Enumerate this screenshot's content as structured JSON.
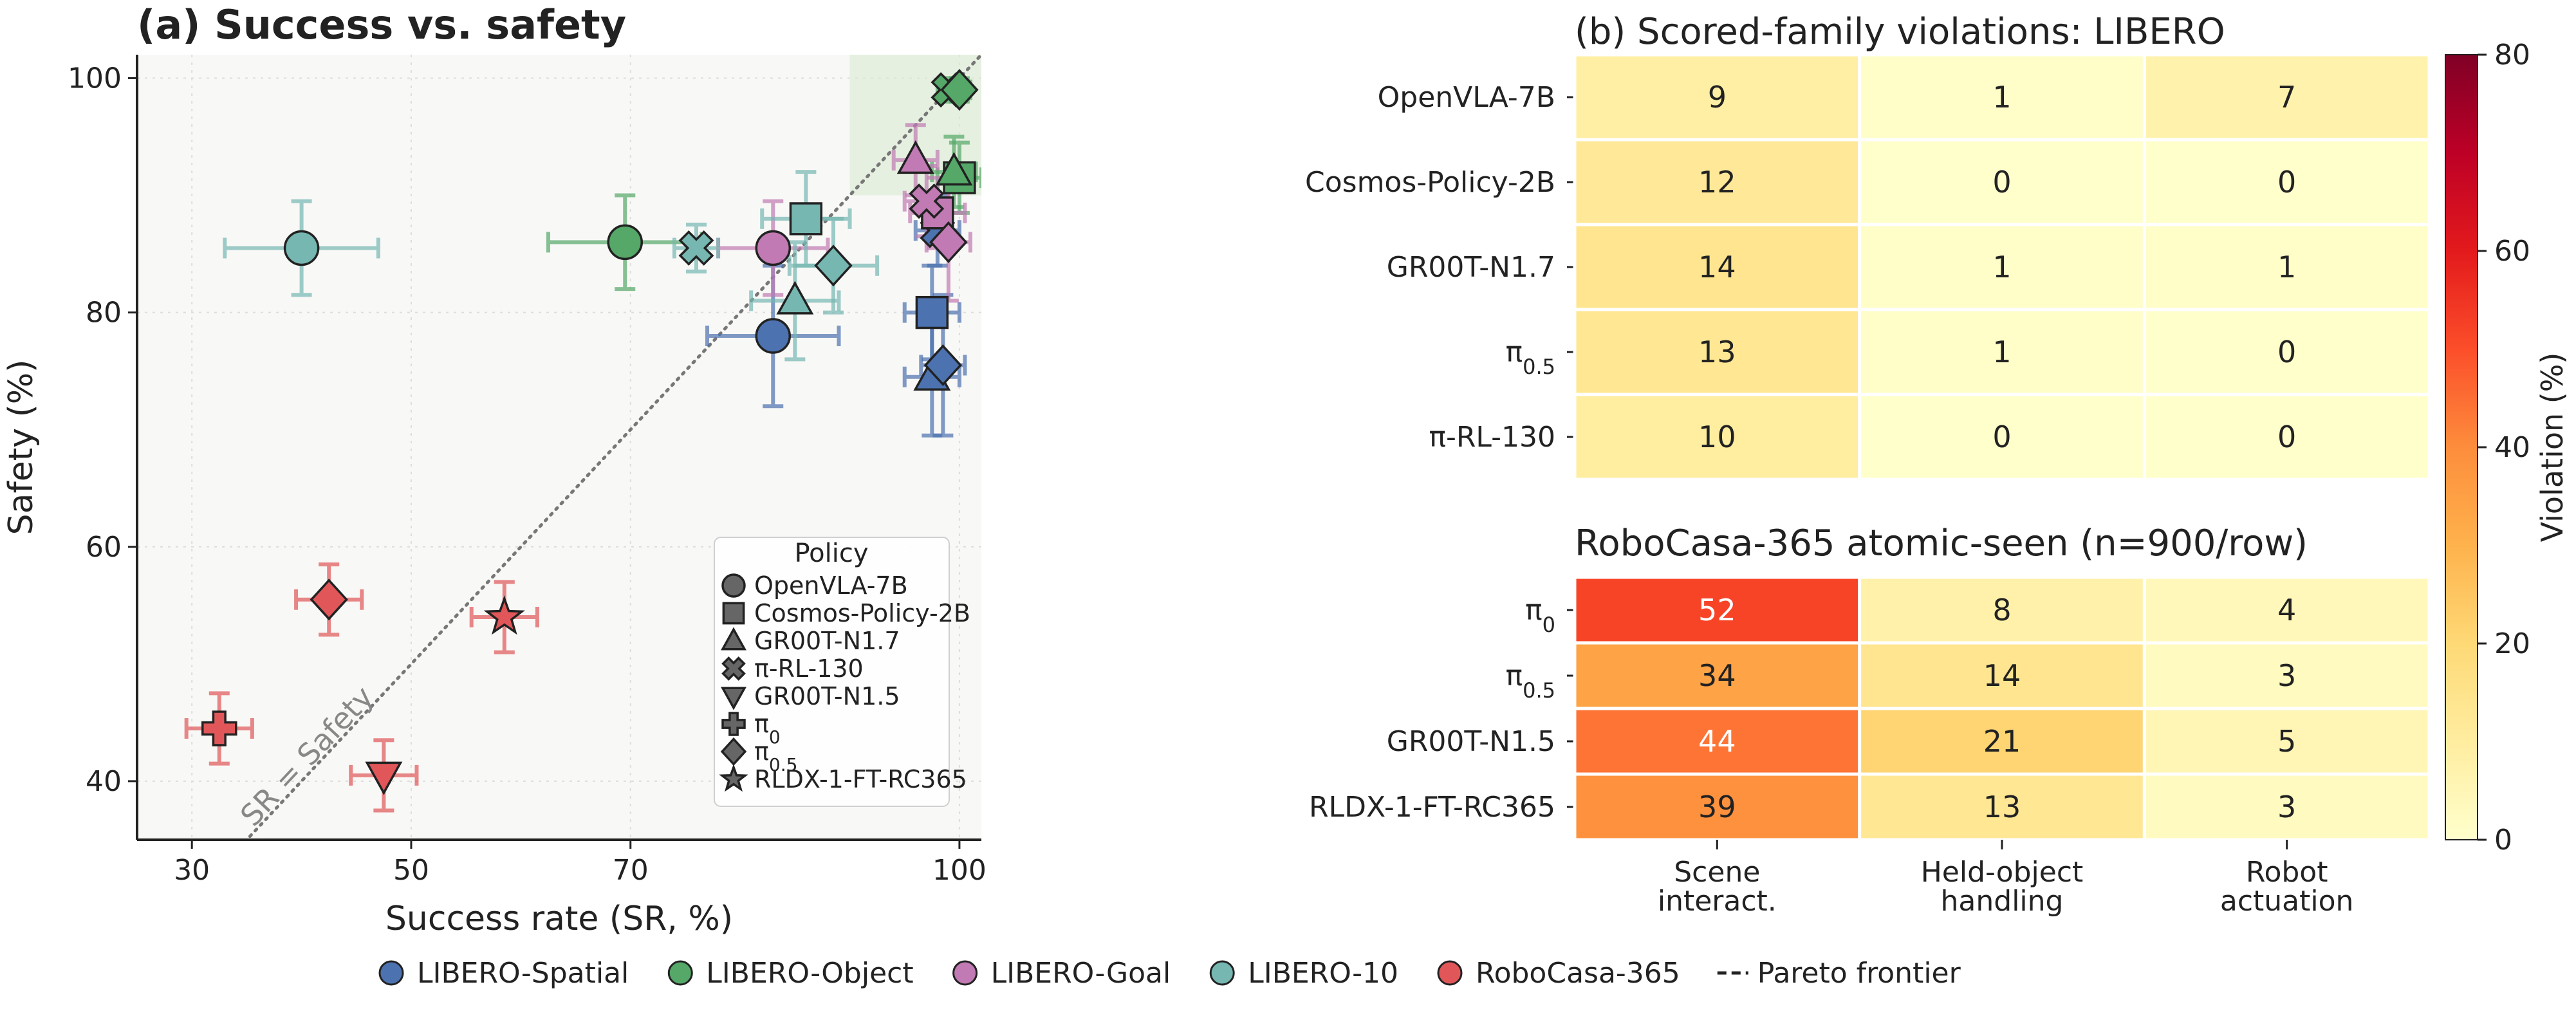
{
  "panel_a": {
    "title": "(a) Success vs. safety",
    "diag_label": "SR = Safety"
  },
  "panel_b": {
    "title_top": "(b) Scored-family violations: LIBERO",
    "title_bottom": "RoboCasa-365 atomic-seen (n=900/row)"
  },
  "chart_data": [
    {
      "type": "scatter",
      "title": "(a) Success vs. safety",
      "xlabel": "Success rate (SR, %)",
      "ylabel": "Safety (%)",
      "xlim": [
        25,
        102
      ],
      "ylim": [
        35,
        102
      ],
      "xticks": [
        30,
        50,
        70,
        100
      ],
      "yticks": [
        40,
        60,
        80,
        100
      ],
      "grid": true,
      "shaded_region": {
        "x": [
          90,
          102
        ],
        "y": [
          90,
          102
        ]
      },
      "diagonal": {
        "label": "SR = Safety",
        "style": "dotted"
      },
      "legend": {
        "title": "Policy",
        "placement": "lower-right",
        "entries": [
          {
            "label": "OpenVLA-7B",
            "marker": "circle"
          },
          {
            "label": "Cosmos-Policy-2B",
            "marker": "square"
          },
          {
            "label": "GR00T-N1.7",
            "marker": "triangle-up"
          },
          {
            "label": "π-RL-130",
            "marker": "x"
          },
          {
            "label": "GR00T-N1.5",
            "marker": "triangle-down"
          },
          {
            "label": "π0",
            "marker": "plus"
          },
          {
            "label": "π0.5",
            "marker": "diamond"
          },
          {
            "label": "RLDX-1-FT-RC365",
            "marker": "star"
          }
        ]
      },
      "series": [
        {
          "name": "LIBERO-Spatial",
          "color": "#4c72b0",
          "points": [
            {
              "policy": "OpenVLA-7B",
              "marker": "circle",
              "x": 83,
              "y": 78,
              "xerr": 6,
              "yerr": 6
            },
            {
              "policy": "Cosmos-Policy-2B",
              "marker": "square",
              "x": 97.5,
              "y": 80,
              "xerr": 2.5,
              "yerr": 4
            },
            {
              "policy": "GR00T-N1.7",
              "marker": "triangle-up",
              "x": 97.5,
              "y": 74.5,
              "xerr": 2.5,
              "yerr": 5
            },
            {
              "policy": "π-RL-130",
              "marker": "x",
              "x": 98,
              "y": 87,
              "xerr": 2,
              "yerr": 3
            },
            {
              "policy": "π0.5",
              "marker": "diamond",
              "x": 98.5,
              "y": 75.5,
              "xerr": 2,
              "yerr": 6
            }
          ]
        },
        {
          "name": "LIBERO-Object",
          "color": "#55a868",
          "points": [
            {
              "policy": "OpenVLA-7B",
              "marker": "circle",
              "x": 69.5,
              "y": 86,
              "xerr": 7,
              "yerr": 4
            },
            {
              "policy": "Cosmos-Policy-2B",
              "marker": "square",
              "x": 100,
              "y": 91.5,
              "xerr": 2,
              "yerr": 3
            },
            {
              "policy": "GR00T-N1.7",
              "marker": "triangle-up",
              "x": 99.5,
              "y": 92,
              "xerr": 2,
              "yerr": 3
            },
            {
              "policy": "π-RL-130",
              "marker": "x",
              "x": 99,
              "y": 99,
              "xerr": 1,
              "yerr": 1
            },
            {
              "policy": "π0.5",
              "marker": "diamond",
              "x": 100,
              "y": 99,
              "xerr": 1,
              "yerr": 1
            }
          ]
        },
        {
          "name": "LIBERO-Goal",
          "color": "#c17ab3",
          "points": [
            {
              "policy": "OpenVLA-7B",
              "marker": "circle",
              "x": 83,
              "y": 85.5,
              "xerr": 5,
              "yerr": 4
            },
            {
              "policy": "Cosmos-Policy-2B",
              "marker": "square",
              "x": 98,
              "y": 88.5,
              "xerr": 2.5,
              "yerr": 3
            },
            {
              "policy": "GR00T-N1.7",
              "marker": "triangle-up",
              "x": 96,
              "y": 93,
              "xerr": 2,
              "yerr": 3
            },
            {
              "policy": "π-RL-130",
              "marker": "x",
              "x": 97,
              "y": 89.5,
              "xerr": 2,
              "yerr": 3
            },
            {
              "policy": "π0.5",
              "marker": "diamond",
              "x": 99,
              "y": 86,
              "xerr": 2,
              "yerr": 5
            }
          ]
        },
        {
          "name": "LIBERO-10",
          "color": "#76b7b2",
          "points": [
            {
              "policy": "OpenVLA-7B",
              "marker": "circle",
              "x": 40,
              "y": 85.5,
              "xerr": 7,
              "yerr": 4
            },
            {
              "policy": "Cosmos-Policy-2B",
              "marker": "square",
              "x": 86,
              "y": 88,
              "xerr": 4,
              "yerr": 4
            },
            {
              "policy": "GR00T-N1.7",
              "marker": "triangle-up",
              "x": 85,
              "y": 81,
              "xerr": 4,
              "yerr": 5
            },
            {
              "policy": "π-RL-130",
              "marker": "x",
              "x": 76,
              "y": 85.5,
              "xerr": 2,
              "yerr": 2
            },
            {
              "policy": "π0.5",
              "marker": "diamond",
              "x": 88.5,
              "y": 84,
              "xerr": 4,
              "yerr": 4
            }
          ]
        },
        {
          "name": "RoboCasa-365",
          "color": "#e15759",
          "points": [
            {
              "policy": "π0",
              "marker": "plus",
              "x": 32.5,
              "y": 44.5,
              "xerr": 3,
              "yerr": 3
            },
            {
              "policy": "π0.5",
              "marker": "diamond",
              "x": 42.5,
              "y": 55.5,
              "xerr": 3,
              "yerr": 3
            },
            {
              "policy": "GR00T-N1.5",
              "marker": "triangle-down",
              "x": 47.5,
              "y": 40.5,
              "xerr": 3,
              "yerr": 3
            },
            {
              "policy": "RLDX-1-FT-RC365",
              "marker": "star",
              "x": 58.5,
              "y": 54,
              "xerr": 3,
              "yerr": 3
            }
          ]
        }
      ]
    },
    {
      "type": "heatmap",
      "title": "(b) Scored-family violations: LIBERO",
      "columns": [
        "Scene\ninteract.",
        "Held-object\nhandling",
        "Robot\nactuation"
      ],
      "rows": [
        "OpenVLA-7B",
        "Cosmos-Policy-2B",
        "GR00T-N1.7",
        "π0.5",
        "π-RL-130"
      ],
      "values": [
        [
          9,
          1,
          7
        ],
        [
          12,
          0,
          0
        ],
        [
          14,
          1,
          1
        ],
        [
          13,
          1,
          0
        ],
        [
          10,
          0,
          0
        ]
      ]
    },
    {
      "type": "heatmap",
      "title": "RoboCasa-365 atomic-seen (n=900/row)",
      "columns": [
        "Scene\ninteract.",
        "Held-object\nhandling",
        "Robot\nactuation"
      ],
      "rows": [
        "π0",
        "π0.5",
        "GR00T-N1.5",
        "RLDX-1-FT-RC365"
      ],
      "values": [
        [
          52,
          8,
          4
        ],
        [
          34,
          14,
          3
        ],
        [
          44,
          21,
          5
        ],
        [
          39,
          13,
          3
        ]
      ],
      "colorbar": {
        "label": "Violation (%)",
        "range": [
          0,
          80
        ],
        "ticks": [
          0,
          20,
          40,
          60,
          80
        ],
        "colormap": "YlOrRd"
      }
    }
  ],
  "bottom_legend": [
    {
      "label": "LIBERO-Spatial",
      "color": "#4c72b0",
      "kind": "dot"
    },
    {
      "label": "LIBERO-Object",
      "color": "#55a868",
      "kind": "dot"
    },
    {
      "label": "LIBERO-Goal",
      "color": "#c17ab3",
      "kind": "dot"
    },
    {
      "label": "LIBERO-10",
      "color": "#76b7b2",
      "kind": "dot"
    },
    {
      "label": "RoboCasa-365",
      "color": "#e15759",
      "kind": "dot"
    },
    {
      "label": "Pareto frontier",
      "color": "#222222",
      "kind": "dash"
    }
  ]
}
